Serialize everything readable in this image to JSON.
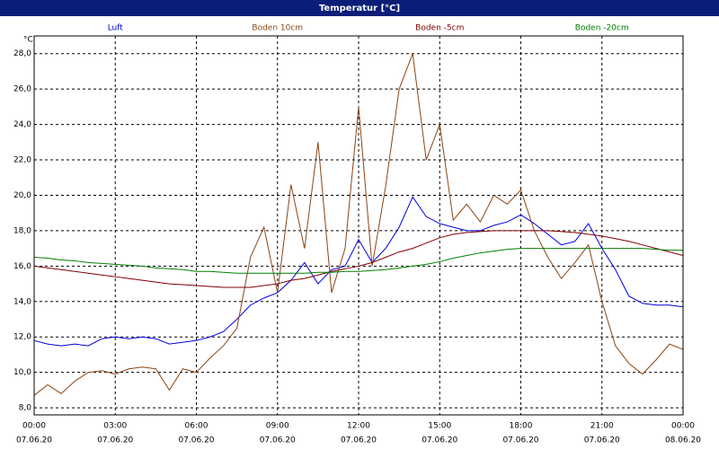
{
  "chart_data": {
    "type": "line",
    "title": "Temperatur [°C]",
    "y_unit": "°C",
    "x": [
      0,
      0.5,
      1,
      1.5,
      2,
      2.5,
      3,
      3.5,
      4,
      4.5,
      5,
      5.5,
      6,
      6.5,
      7,
      7.5,
      8,
      8.5,
      9,
      9.5,
      10,
      10.5,
      11,
      11.5,
      12,
      12.5,
      13,
      13.5,
      14,
      14.5,
      15,
      15.5,
      16,
      16.5,
      17,
      17.5,
      18,
      18.5,
      19,
      19.5,
      20,
      20.5,
      21,
      21.5,
      22,
      22.5,
      23,
      23.5,
      24
    ],
    "series": [
      {
        "name": "Luft",
        "color": "#0000e0",
        "values": [
          11.8,
          11.6,
          11.5,
          11.6,
          11.5,
          11.9,
          12.0,
          11.9,
          12.0,
          11.9,
          11.6,
          11.7,
          11.8,
          12.0,
          12.3,
          13.0,
          13.8,
          14.2,
          14.5,
          15.2,
          16.2,
          15.0,
          15.8,
          16.0,
          17.5,
          16.2,
          17.0,
          18.2,
          19.9,
          18.8,
          18.4,
          18.2,
          18.0,
          18.0,
          18.3,
          18.5,
          18.9,
          18.4,
          17.8,
          17.2,
          17.4,
          18.4,
          17.0,
          15.8,
          14.3,
          13.9,
          13.8,
          13.8,
          13.7
        ]
      },
      {
        "name": "Boden 10cm",
        "color": "#8b4513",
        "values": [
          8.7,
          9.3,
          8.8,
          9.5,
          10.0,
          10.1,
          9.9,
          10.2,
          10.3,
          10.2,
          9.0,
          10.2,
          10.0,
          10.8,
          11.5,
          12.5,
          16.5,
          18.2,
          14.5,
          20.6,
          17.0,
          23.0,
          14.5,
          17.0,
          25.0,
          16.0,
          20.5,
          26.0,
          28.0,
          22.0,
          24.0,
          18.6,
          19.5,
          18.5,
          20.0,
          19.5,
          20.3,
          18.0,
          16.5,
          15.3,
          16.2,
          17.2,
          14.0,
          11.5,
          10.5,
          9.9,
          10.7,
          11.6,
          11.3
        ]
      },
      {
        "name": "Boden -5cm",
        "color": "#800000",
        "values": [
          16.0,
          15.9,
          15.8,
          15.7,
          15.6,
          15.5,
          15.4,
          15.3,
          15.2,
          15.1,
          15.0,
          14.95,
          14.9,
          14.85,
          14.8,
          14.8,
          14.8,
          14.9,
          15.0,
          15.2,
          15.3,
          15.5,
          15.7,
          15.85,
          16.0,
          16.2,
          16.5,
          16.8,
          17.0,
          17.3,
          17.6,
          17.8,
          17.9,
          17.95,
          18.0,
          18.0,
          18.0,
          18.0,
          18.0,
          17.95,
          17.9,
          17.8,
          17.7,
          17.55,
          17.4,
          17.2,
          17.0,
          16.8,
          16.6
        ]
      },
      {
        "name": "Boden -20cm",
        "color": "#008000",
        "values": [
          16.5,
          16.45,
          16.35,
          16.3,
          16.2,
          16.15,
          16.1,
          16.05,
          16.0,
          15.9,
          15.85,
          15.8,
          15.7,
          15.7,
          15.65,
          15.6,
          15.6,
          15.6,
          15.6,
          15.6,
          15.6,
          15.65,
          15.65,
          15.7,
          15.7,
          15.75,
          15.8,
          15.9,
          16.0,
          16.1,
          16.25,
          16.45,
          16.6,
          16.75,
          16.85,
          16.95,
          17.0,
          17.0,
          17.0,
          17.0,
          17.0,
          17.0,
          17.0,
          17.0,
          17.0,
          17.0,
          16.95,
          16.9,
          16.9
        ]
      }
    ],
    "xlim": [
      0,
      24
    ],
    "xticks": [
      {
        "value": 0,
        "label": "00:00"
      },
      {
        "value": 3,
        "label": "03:00"
      },
      {
        "value": 6,
        "label": "06:00"
      },
      {
        "value": 9,
        "label": "09:00"
      },
      {
        "value": 12,
        "label": "12:00"
      },
      {
        "value": 15,
        "label": "15:00"
      },
      {
        "value": 18,
        "label": "18:00"
      },
      {
        "value": 21,
        "label": "21:00"
      },
      {
        "value": 24,
        "label": "00:00"
      }
    ],
    "xtick_dates": [
      "07.06.20",
      "07.06.20",
      "07.06.20",
      "07.06.20",
      "07.06.20",
      "07.06.20",
      "07.06.20",
      "07.06.20",
      "08.06.20"
    ],
    "ylim": [
      7.6,
      29
    ],
    "yticks": [
      {
        "value": 8,
        "label": "8,0"
      },
      {
        "value": 10,
        "label": "10,0"
      },
      {
        "value": 12,
        "label": "12,0"
      },
      {
        "value": 14,
        "label": "14,0"
      },
      {
        "value": 16,
        "label": "16,0"
      },
      {
        "value": 18,
        "label": "18,0"
      },
      {
        "value": 20,
        "label": "20,0"
      },
      {
        "value": 22,
        "label": "22,0"
      },
      {
        "value": 24,
        "label": "24,0"
      },
      {
        "value": 26,
        "label": "26,0"
      },
      {
        "value": 28,
        "label": "28,0"
      }
    ],
    "grid": true
  }
}
